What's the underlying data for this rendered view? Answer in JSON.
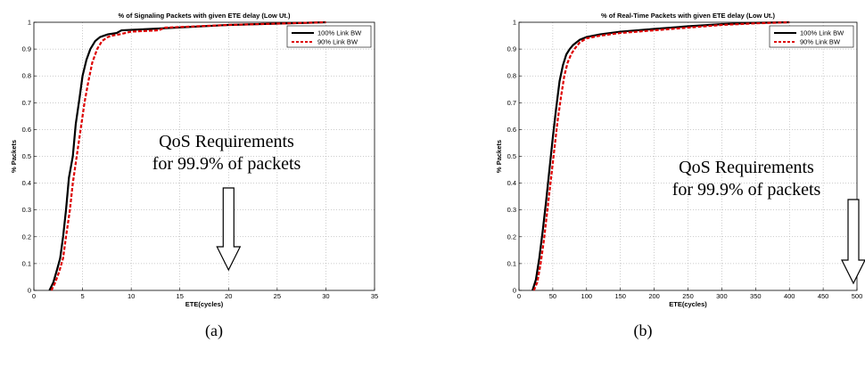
{
  "chart_data": [
    {
      "type": "line",
      "title": "% of Signaling Packets with given ETE delay (Low Ut.)",
      "xlabel": "ETE(cycles)",
      "ylabel": "% Packets",
      "xlim": [
        0,
        35
      ],
      "ylim": [
        0,
        1
      ],
      "xticks": [
        0,
        5,
        10,
        15,
        20,
        25,
        30,
        35
      ],
      "yticks": [
        0,
        0.1,
        0.2,
        0.3,
        0.4,
        0.5,
        0.6,
        0.7,
        0.8,
        0.9,
        1
      ],
      "grid": true,
      "legend_position": "top-right",
      "series": [
        {
          "name": "100% Link BW",
          "color": "#000000",
          "style": "solid",
          "x": [
            1.6,
            2.0,
            2.4,
            2.7,
            3.0,
            3.3,
            3.6,
            4.0,
            4.3,
            4.7,
            5.0,
            5.4,
            5.8,
            6.3,
            6.8,
            7.2,
            7.6,
            8.5,
            9.0,
            12.0,
            20.0,
            30.0
          ],
          "y": [
            0.0,
            0.03,
            0.08,
            0.12,
            0.2,
            0.3,
            0.42,
            0.5,
            0.62,
            0.72,
            0.8,
            0.86,
            0.9,
            0.93,
            0.945,
            0.95,
            0.955,
            0.96,
            0.97,
            0.975,
            0.99,
            1.0
          ]
        },
        {
          "name": "90% Link BW",
          "color": "#dd0000",
          "style": "dashed",
          "x": [
            1.8,
            2.2,
            2.6,
            3.0,
            3.3,
            3.7,
            4.0,
            4.4,
            4.8,
            5.2,
            5.6,
            6.0,
            6.5,
            7.0,
            7.6,
            8.0,
            8.8,
            10.0,
            12.8,
            13.5,
            20.0,
            30.0
          ],
          "y": [
            0.0,
            0.03,
            0.07,
            0.12,
            0.2,
            0.3,
            0.4,
            0.5,
            0.6,
            0.7,
            0.78,
            0.85,
            0.9,
            0.93,
            0.945,
            0.95,
            0.955,
            0.965,
            0.97,
            0.98,
            0.99,
            1.0
          ]
        }
      ]
    },
    {
      "type": "line",
      "title": "% of Real-Time Packets with given ETE delay (Low Ut.)",
      "xlabel": "ETE(cycles)",
      "ylabel": "% Packets",
      "xlim": [
        0,
        500
      ],
      "ylim": [
        0,
        1
      ],
      "xticks": [
        0,
        50,
        100,
        150,
        200,
        250,
        300,
        350,
        400,
        450,
        500
      ],
      "yticks": [
        0,
        0.1,
        0.2,
        0.3,
        0.4,
        0.5,
        0.6,
        0.7,
        0.8,
        0.9,
        1
      ],
      "grid": true,
      "legend_position": "top-right",
      "series": [
        {
          "name": "100% Link BW",
          "color": "#000000",
          "style": "solid",
          "x": [
            20,
            25,
            30,
            35,
            40,
            45,
            50,
            55,
            60,
            65,
            70,
            75,
            80,
            90,
            100,
            120,
            150,
            200,
            250,
            300,
            350,
            400
          ],
          "y": [
            0.0,
            0.04,
            0.12,
            0.22,
            0.33,
            0.45,
            0.57,
            0.68,
            0.78,
            0.84,
            0.88,
            0.9,
            0.915,
            0.935,
            0.945,
            0.955,
            0.965,
            0.975,
            0.985,
            0.993,
            0.998,
            1.0
          ]
        },
        {
          "name": "90% Link BW",
          "color": "#dd0000",
          "style": "dashed",
          "x": [
            22,
            27,
            32,
            37,
            42,
            47,
            52,
            57,
            62,
            67,
            72,
            77,
            82,
            90,
            100,
            120,
            150,
            200,
            250,
            300,
            350,
            400
          ],
          "y": [
            0.0,
            0.03,
            0.1,
            0.19,
            0.3,
            0.41,
            0.52,
            0.63,
            0.72,
            0.8,
            0.85,
            0.88,
            0.9,
            0.925,
            0.94,
            0.95,
            0.96,
            0.97,
            0.98,
            0.99,
            0.996,
            1.0
          ]
        }
      ]
    }
  ],
  "annotations": [
    {
      "line1": "QoS Requirements",
      "line2": "for 99.9% of packets",
      "arrow_at_x": 20
    },
    {
      "line1": "QoS Requirements",
      "line2": "for 99.9% of packets",
      "arrow_at_x": 500
    }
  ],
  "subfigure_labels": [
    "(a)",
    "(b)"
  ]
}
